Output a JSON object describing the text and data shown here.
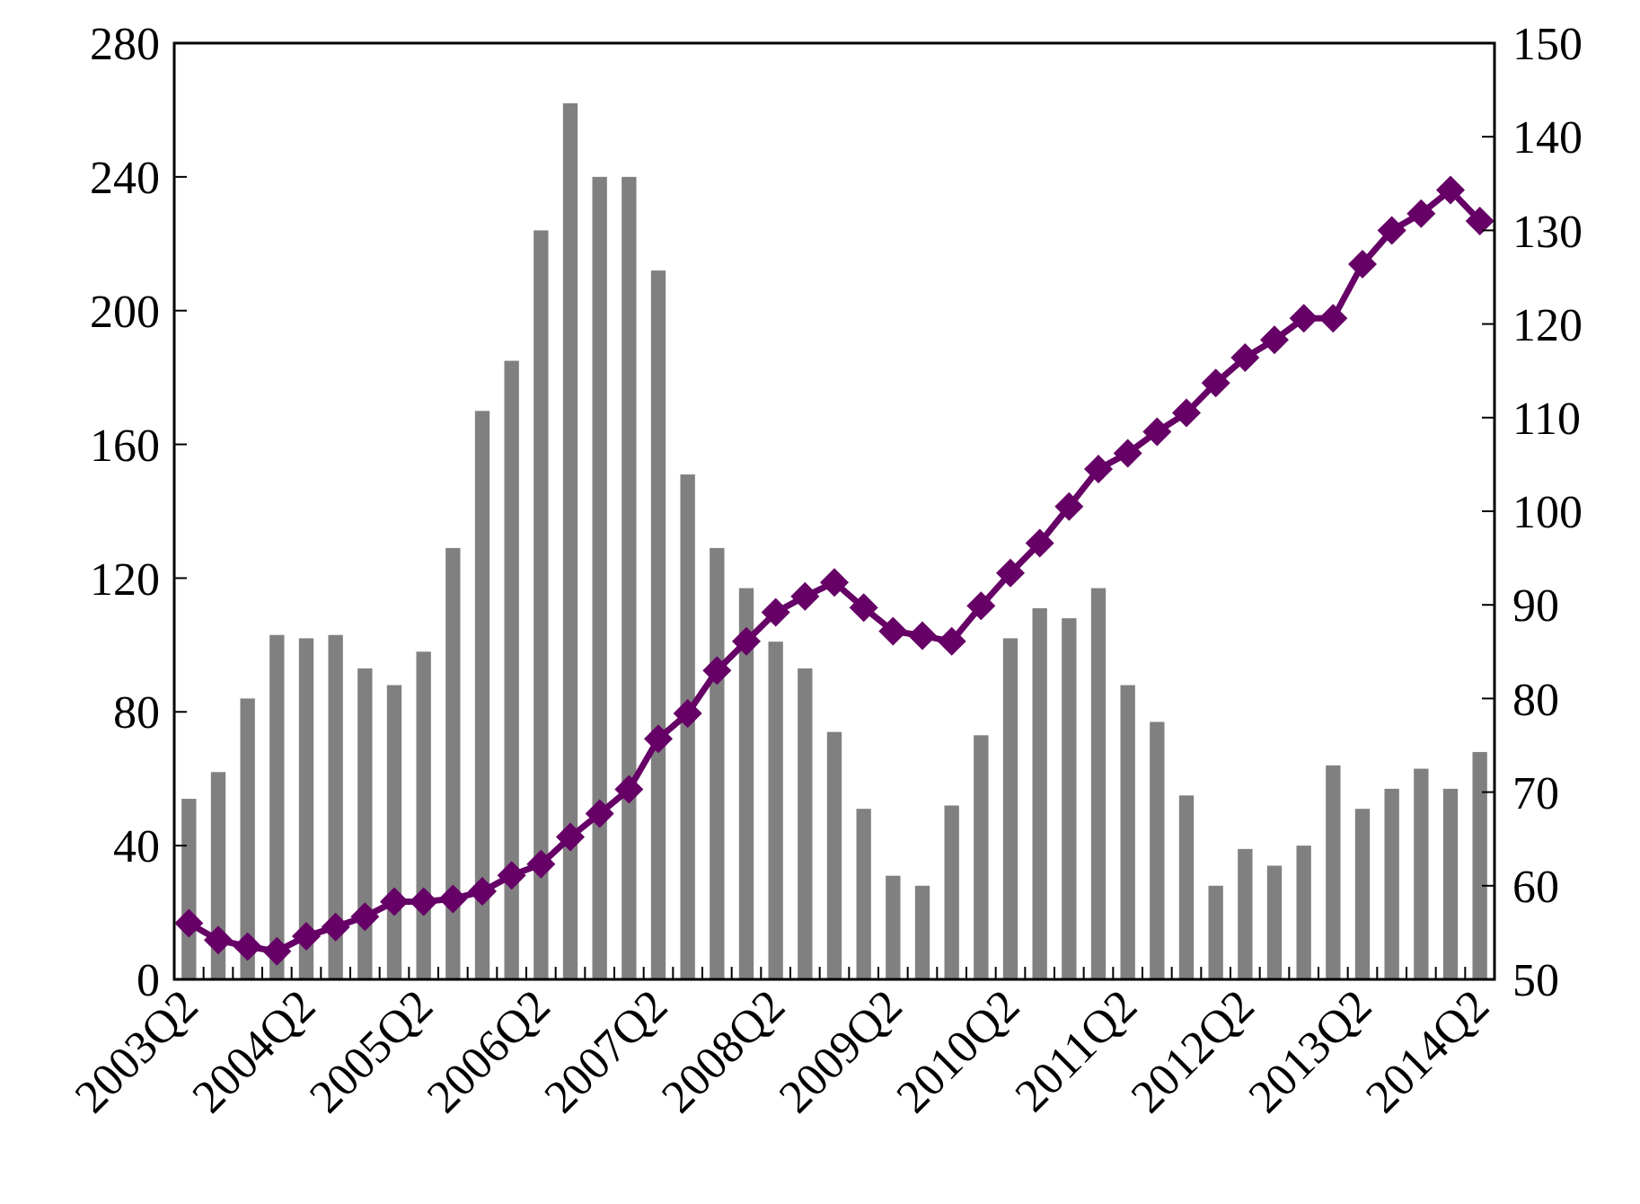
{
  "chart_data": {
    "type": "bar",
    "categories": [
      "2003Q2",
      null,
      null,
      null,
      "2004Q2",
      null,
      null,
      null,
      "2005Q2",
      null,
      null,
      null,
      "2006Q2",
      null,
      null,
      null,
      "2007Q2",
      null,
      null,
      null,
      "2008Q2",
      null,
      null,
      null,
      "2009Q2",
      null,
      null,
      null,
      "2010Q2",
      null,
      null,
      null,
      "2011Q2",
      null,
      null,
      null,
      "2012Q2",
      null,
      null,
      null,
      "2013Q2",
      null,
      null,
      null,
      "2014Q2"
    ],
    "series": [
      {
        "color": "#808080",
        "values": [
          54,
          62,
          84,
          103,
          102,
          103,
          93,
          88,
          98,
          129,
          170,
          185,
          224,
          262,
          240,
          240,
          212,
          151,
          129,
          117,
          101,
          93,
          74,
          51,
          31,
          28,
          52,
          73,
          102,
          111,
          108,
          117,
          88,
          77,
          55,
          28,
          39,
          34,
          40,
          64,
          51,
          57,
          63,
          57,
          68
        ]
      },
      {
        "type": "line",
        "axis": "y2",
        "color": "#660066",
        "marker": "diamond",
        "line_style": "solid",
        "values": [
          56,
          54.2,
          53.5,
          53,
          54.6,
          55.6,
          56.7,
          58.3,
          58.3,
          58.6,
          59.4,
          61.1,
          62.3,
          65.2,
          67.7,
          70.3,
          75.7,
          78.4,
          83,
          86.1,
          89.2,
          90.9,
          92.4,
          89.7,
          87.2,
          86.7,
          86.1,
          89.9,
          93.4,
          96.6,
          100.5,
          104.5,
          106.2,
          108.5,
          110.5,
          113.7,
          116.4,
          118.3,
          120.6,
          120.6,
          126.4,
          130,
          131.8,
          134.3,
          131
        ]
      }
    ],
    "ylim": [
      0,
      280
    ],
    "yticks": [
      0,
      40,
      80,
      120,
      160,
      200,
      240,
      280
    ],
    "y2lim": [
      50,
      150
    ],
    "y2ticks": [
      50,
      60,
      70,
      80,
      90,
      100,
      110,
      120,
      130,
      140,
      150
    ],
    "grid": false
  }
}
